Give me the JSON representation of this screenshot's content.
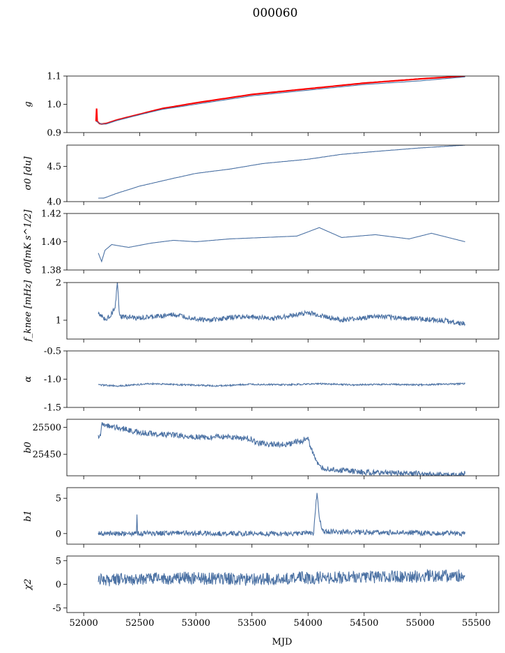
{
  "title": "000060",
  "colors": {
    "series": "#4c72a4",
    "overlay": "#ff0000",
    "axes": "#000000"
  },
  "chart_data": {
    "type": "line",
    "xlabel": "MJD",
    "xlim": [
      51850,
      55700
    ],
    "xticks": [
      "52000",
      "52500",
      "53000",
      "53500",
      "54000",
      "54500",
      "55000",
      "55500"
    ],
    "x_tick_values": [
      52000,
      52500,
      53000,
      53500,
      54000,
      54500,
      55000,
      55500
    ],
    "grid": false,
    "panels": [
      {
        "id": "g",
        "ylabel": "g",
        "ylim": [
          0.9,
          1.1
        ],
        "yticks": [
          "0.9",
          "1.0",
          "1.1"
        ],
        "y_tick_values": [
          0.9,
          1.0,
          1.1
        ],
        "series": [
          {
            "color": "#ff0000",
            "x": [
              52110,
              52115,
              52120,
              52140,
              52160,
              52200,
              52300,
              52500,
              52700,
              53000,
              53500,
              54000,
              54500,
              55000,
              55400
            ],
            "y": [
              0.94,
              0.985,
              0.94,
              0.932,
              0.93,
              0.932,
              0.945,
              0.965,
              0.985,
              1.005,
              1.035,
              1.055,
              1.075,
              1.09,
              1.1
            ]
          },
          {
            "color": "#4c72a4",
            "x": [
              52110,
              52140,
              52160,
              52200,
              52300,
              52500,
              52700,
              53000,
              53500,
              54000,
              54500,
              55000,
              55200,
              55400
            ],
            "y": [
              0.94,
              0.933,
              0.93,
              0.93,
              0.943,
              0.963,
              0.982,
              1.0,
              1.03,
              1.05,
              1.07,
              1.083,
              1.09,
              1.097
            ]
          }
        ]
      },
      {
        "id": "sigma0_du",
        "ylabel": "σ0 [du]",
        "ylim": [
          4.0,
          4.8
        ],
        "yticks": [
          "4.0",
          "4.5"
        ],
        "y_tick_values": [
          4.0,
          4.5
        ],
        "series": [
          {
            "color": "#4c72a4",
            "x": [
              52130,
              52180,
              52300,
              52500,
              52800,
              53000,
              53300,
              53600,
              54000,
              54300,
              54600,
              55000,
              55400
            ],
            "y": [
              4.05,
              4.05,
              4.12,
              4.22,
              4.33,
              4.4,
              4.46,
              4.54,
              4.6,
              4.67,
              4.71,
              4.76,
              4.8
            ]
          }
        ]
      },
      {
        "id": "sigma0_mk",
        "ylabel": "σ0[mK s^1/2]",
        "ylim": [
          1.38,
          1.42
        ],
        "yticks": [
          "1.38",
          "1.40",
          "1.42"
        ],
        "y_tick_values": [
          1.38,
          1.4,
          1.42
        ],
        "series": [
          {
            "color": "#4c72a4",
            "x": [
              52130,
              52160,
              52190,
              52250,
              52400,
              52600,
              52800,
              53000,
              53300,
              53600,
              53900,
              54100,
              54300,
              54600,
              54900,
              55100,
              55400
            ],
            "y": [
              1.392,
              1.386,
              1.394,
              1.398,
              1.396,
              1.399,
              1.401,
              1.4,
              1.402,
              1.403,
              1.404,
              1.41,
              1.403,
              1.405,
              1.402,
              1.406,
              1.4
            ]
          }
        ]
      },
      {
        "id": "fknee",
        "ylabel": "f_knee [mHz]",
        "ylim": [
          0.5,
          2.0
        ],
        "yticks": [
          "1",
          "2"
        ],
        "y_tick_values": [
          1,
          2
        ],
        "series": [
          {
            "color": "#4c72a4",
            "x": [
              52130,
              52200,
              52280,
              52300,
              52320,
              52500,
              52800,
              53100,
              53400,
              53700,
              54000,
              54300,
              54600,
              54900,
              55200,
              55400
            ],
            "y": [
              1.2,
              1.0,
              1.3,
              2.0,
              1.1,
              1.05,
              1.15,
              1.0,
              1.1,
              1.05,
              1.2,
              1.0,
              1.1,
              1.05,
              1.0,
              0.9
            ]
          }
        ]
      },
      {
        "id": "alpha",
        "ylabel": "α",
        "ylim": [
          -1.5,
          -0.5
        ],
        "yticks": [
          "-1.5",
          "-1.0",
          "-0.5"
        ],
        "y_tick_values": [
          -1.5,
          -1.0,
          -0.5
        ],
        "series": [
          {
            "color": "#4c72a4",
            "x": [
              52130,
              52300,
              52600,
              52900,
              53200,
              53500,
              53800,
              54100,
              54400,
              54700,
              55000,
              55400
            ],
            "y": [
              -1.1,
              -1.12,
              -1.08,
              -1.1,
              -1.12,
              -1.09,
              -1.1,
              -1.08,
              -1.1,
              -1.09,
              -1.1,
              -1.08
            ]
          }
        ]
      },
      {
        "id": "b0",
        "ylabel": "b0",
        "ylim": [
          25410,
          25515
        ],
        "yticks": [
          "25450",
          "25500"
        ],
        "y_tick_values": [
          25450,
          25500
        ],
        "series": [
          {
            "color": "#4c72a4",
            "x": [
              52130,
              52150,
              52160,
              52300,
              52500,
              52700,
              53000,
              53300,
              53500,
              53550,
              53800,
              54000,
              54070,
              54100,
              54200,
              54500,
              55000,
              55300,
              55400
            ],
            "y": [
              25484,
              25484,
              25505,
              25500,
              25490,
              25487,
              25482,
              25482,
              25478,
              25470,
              25468,
              25478,
              25440,
              25425,
              25422,
              25416,
              25414,
              25411,
              25414
            ]
          }
        ]
      },
      {
        "id": "b1",
        "ylabel": "b1",
        "ylim": [
          -1.5,
          6.5
        ],
        "yticks": [
          "0",
          "5"
        ],
        "y_tick_values": [
          0,
          5
        ],
        "series": [
          {
            "color": "#4c72a4",
            "x": [
              52130,
              52470,
              52475,
              52480,
              52800,
              53300,
              53800,
              54050,
              54080,
              54100,
              54130,
              54500,
              55000,
              55400
            ],
            "y": [
              0.0,
              0.0,
              2.7,
              0.0,
              0.1,
              0.0,
              0.0,
              0.1,
              6.0,
              2.5,
              0.3,
              0.2,
              0.1,
              0.0
            ]
          }
        ]
      },
      {
        "id": "chi2",
        "ylabel": "χ2",
        "ylim": [
          -6,
          6
        ],
        "yticks": [
          "-5",
          "0",
          "5"
        ],
        "y_tick_values": [
          -5,
          0,
          5
        ],
        "series": [
          {
            "color": "#4c72a4",
            "x": [
              52130,
              52300,
              52600,
              52900,
              53200,
              53500,
              53800,
              54100,
              54400,
              54700,
              55000,
              55400
            ],
            "y": [
              0.8,
              1.0,
              1.2,
              1.3,
              1.2,
              1.0,
              1.3,
              1.4,
              1.5,
              1.6,
              1.7,
              1.8
            ]
          }
        ]
      }
    ]
  }
}
